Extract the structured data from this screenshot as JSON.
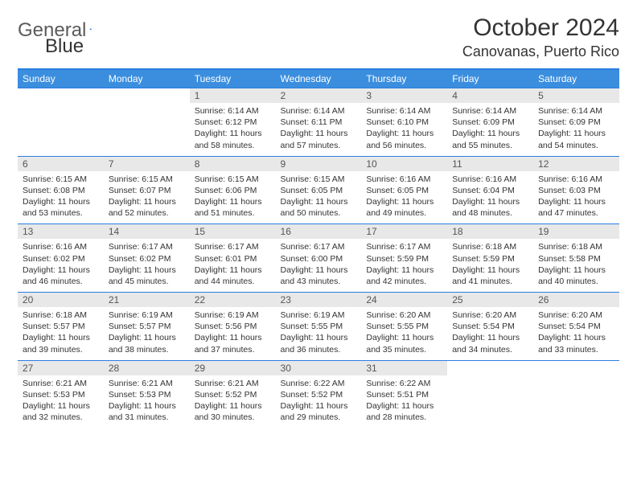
{
  "brand": {
    "word1": "General",
    "word2": "Blue"
  },
  "colors": {
    "accent": "#2a7de1",
    "headerBar": "#3b8ede",
    "dayNumBg": "#e8e8e8",
    "text": "#333333"
  },
  "title": "October 2024",
  "location": "Canovanas, Puerto Rico",
  "weekdays": [
    "Sunday",
    "Monday",
    "Tuesday",
    "Wednesday",
    "Thursday",
    "Friday",
    "Saturday"
  ],
  "weeks": [
    [
      null,
      null,
      {
        "n": "1",
        "sunrise": "Sunrise: 6:14 AM",
        "sunset": "Sunset: 6:12 PM",
        "daylight": "Daylight: 11 hours and 58 minutes."
      },
      {
        "n": "2",
        "sunrise": "Sunrise: 6:14 AM",
        "sunset": "Sunset: 6:11 PM",
        "daylight": "Daylight: 11 hours and 57 minutes."
      },
      {
        "n": "3",
        "sunrise": "Sunrise: 6:14 AM",
        "sunset": "Sunset: 6:10 PM",
        "daylight": "Daylight: 11 hours and 56 minutes."
      },
      {
        "n": "4",
        "sunrise": "Sunrise: 6:14 AM",
        "sunset": "Sunset: 6:09 PM",
        "daylight": "Daylight: 11 hours and 55 minutes."
      },
      {
        "n": "5",
        "sunrise": "Sunrise: 6:14 AM",
        "sunset": "Sunset: 6:09 PM",
        "daylight": "Daylight: 11 hours and 54 minutes."
      }
    ],
    [
      {
        "n": "6",
        "sunrise": "Sunrise: 6:15 AM",
        "sunset": "Sunset: 6:08 PM",
        "daylight": "Daylight: 11 hours and 53 minutes."
      },
      {
        "n": "7",
        "sunrise": "Sunrise: 6:15 AM",
        "sunset": "Sunset: 6:07 PM",
        "daylight": "Daylight: 11 hours and 52 minutes."
      },
      {
        "n": "8",
        "sunrise": "Sunrise: 6:15 AM",
        "sunset": "Sunset: 6:06 PM",
        "daylight": "Daylight: 11 hours and 51 minutes."
      },
      {
        "n": "9",
        "sunrise": "Sunrise: 6:15 AM",
        "sunset": "Sunset: 6:05 PM",
        "daylight": "Daylight: 11 hours and 50 minutes."
      },
      {
        "n": "10",
        "sunrise": "Sunrise: 6:16 AM",
        "sunset": "Sunset: 6:05 PM",
        "daylight": "Daylight: 11 hours and 49 minutes."
      },
      {
        "n": "11",
        "sunrise": "Sunrise: 6:16 AM",
        "sunset": "Sunset: 6:04 PM",
        "daylight": "Daylight: 11 hours and 48 minutes."
      },
      {
        "n": "12",
        "sunrise": "Sunrise: 6:16 AM",
        "sunset": "Sunset: 6:03 PM",
        "daylight": "Daylight: 11 hours and 47 minutes."
      }
    ],
    [
      {
        "n": "13",
        "sunrise": "Sunrise: 6:16 AM",
        "sunset": "Sunset: 6:02 PM",
        "daylight": "Daylight: 11 hours and 46 minutes."
      },
      {
        "n": "14",
        "sunrise": "Sunrise: 6:17 AM",
        "sunset": "Sunset: 6:02 PM",
        "daylight": "Daylight: 11 hours and 45 minutes."
      },
      {
        "n": "15",
        "sunrise": "Sunrise: 6:17 AM",
        "sunset": "Sunset: 6:01 PM",
        "daylight": "Daylight: 11 hours and 44 minutes."
      },
      {
        "n": "16",
        "sunrise": "Sunrise: 6:17 AM",
        "sunset": "Sunset: 6:00 PM",
        "daylight": "Daylight: 11 hours and 43 minutes."
      },
      {
        "n": "17",
        "sunrise": "Sunrise: 6:17 AM",
        "sunset": "Sunset: 5:59 PM",
        "daylight": "Daylight: 11 hours and 42 minutes."
      },
      {
        "n": "18",
        "sunrise": "Sunrise: 6:18 AM",
        "sunset": "Sunset: 5:59 PM",
        "daylight": "Daylight: 11 hours and 41 minutes."
      },
      {
        "n": "19",
        "sunrise": "Sunrise: 6:18 AM",
        "sunset": "Sunset: 5:58 PM",
        "daylight": "Daylight: 11 hours and 40 minutes."
      }
    ],
    [
      {
        "n": "20",
        "sunrise": "Sunrise: 6:18 AM",
        "sunset": "Sunset: 5:57 PM",
        "daylight": "Daylight: 11 hours and 39 minutes."
      },
      {
        "n": "21",
        "sunrise": "Sunrise: 6:19 AM",
        "sunset": "Sunset: 5:57 PM",
        "daylight": "Daylight: 11 hours and 38 minutes."
      },
      {
        "n": "22",
        "sunrise": "Sunrise: 6:19 AM",
        "sunset": "Sunset: 5:56 PM",
        "daylight": "Daylight: 11 hours and 37 minutes."
      },
      {
        "n": "23",
        "sunrise": "Sunrise: 6:19 AM",
        "sunset": "Sunset: 5:55 PM",
        "daylight": "Daylight: 11 hours and 36 minutes."
      },
      {
        "n": "24",
        "sunrise": "Sunrise: 6:20 AM",
        "sunset": "Sunset: 5:55 PM",
        "daylight": "Daylight: 11 hours and 35 minutes."
      },
      {
        "n": "25",
        "sunrise": "Sunrise: 6:20 AM",
        "sunset": "Sunset: 5:54 PM",
        "daylight": "Daylight: 11 hours and 34 minutes."
      },
      {
        "n": "26",
        "sunrise": "Sunrise: 6:20 AM",
        "sunset": "Sunset: 5:54 PM",
        "daylight": "Daylight: 11 hours and 33 minutes."
      }
    ],
    [
      {
        "n": "27",
        "sunrise": "Sunrise: 6:21 AM",
        "sunset": "Sunset: 5:53 PM",
        "daylight": "Daylight: 11 hours and 32 minutes."
      },
      {
        "n": "28",
        "sunrise": "Sunrise: 6:21 AM",
        "sunset": "Sunset: 5:53 PM",
        "daylight": "Daylight: 11 hours and 31 minutes."
      },
      {
        "n": "29",
        "sunrise": "Sunrise: 6:21 AM",
        "sunset": "Sunset: 5:52 PM",
        "daylight": "Daylight: 11 hours and 30 minutes."
      },
      {
        "n": "30",
        "sunrise": "Sunrise: 6:22 AM",
        "sunset": "Sunset: 5:52 PM",
        "daylight": "Daylight: 11 hours and 29 minutes."
      },
      {
        "n": "31",
        "sunrise": "Sunrise: 6:22 AM",
        "sunset": "Sunset: 5:51 PM",
        "daylight": "Daylight: 11 hours and 28 minutes."
      },
      null,
      null
    ]
  ]
}
